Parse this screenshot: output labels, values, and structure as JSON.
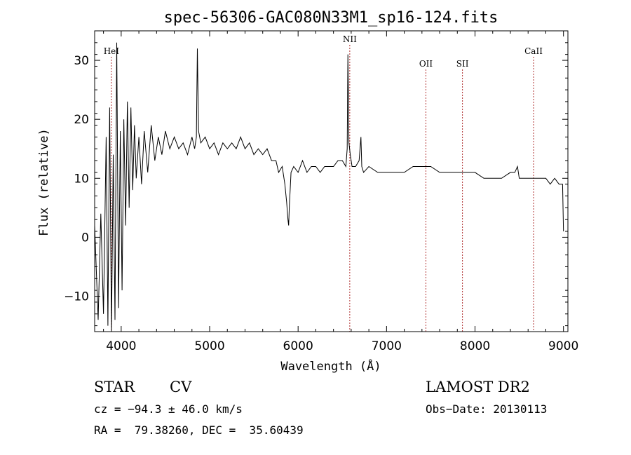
{
  "chart_data": {
    "type": "line",
    "title": "spec-56306-GAC080N33M1_sp16-124.fits",
    "xlabel": "Wavelength (Å)",
    "ylabel": "Flux (relative)",
    "xlim": [
      3700,
      9050
    ],
    "ylim": [
      -16,
      35
    ],
    "x_ticks": [
      4000,
      5000,
      6000,
      7000,
      8000,
      9000
    ],
    "y_ticks": [
      -10,
      0,
      10,
      20,
      30
    ],
    "line_color": "#000000",
    "marker_color": "#b03030",
    "spectral_lines": [
      {
        "name": "HeI",
        "wavelength": 3889
      },
      {
        "name": "NII",
        "wavelength": 6584
      },
      {
        "name": "OII",
        "wavelength": 7445
      },
      {
        "name": "SII",
        "wavelength": 7858
      },
      {
        "name": "CaII",
        "wavelength": 8662
      }
    ],
    "series": [
      {
        "points": [
          [
            3700,
            2
          ],
          [
            3740,
            -14
          ],
          [
            3770,
            4
          ],
          [
            3800,
            -13
          ],
          [
            3830,
            17
          ],
          [
            3850,
            -15
          ],
          [
            3870,
            22
          ],
          [
            3890,
            -16
          ],
          [
            3910,
            14
          ],
          [
            3930,
            -14
          ],
          [
            3950,
            33
          ],
          [
            3970,
            -12
          ],
          [
            3990,
            18
          ],
          [
            4010,
            -9
          ],
          [
            4030,
            20
          ],
          [
            4050,
            2
          ],
          [
            4070,
            23
          ],
          [
            4090,
            5
          ],
          [
            4110,
            22
          ],
          [
            4130,
            8
          ],
          [
            4150,
            19
          ],
          [
            4170,
            10
          ],
          [
            4200,
            17
          ],
          [
            4230,
            9
          ],
          [
            4260,
            18
          ],
          [
            4300,
            11
          ],
          [
            4340,
            19
          ],
          [
            4380,
            13
          ],
          [
            4420,
            17
          ],
          [
            4460,
            14
          ],
          [
            4500,
            18
          ],
          [
            4550,
            15
          ],
          [
            4600,
            17
          ],
          [
            4650,
            15
          ],
          [
            4700,
            16
          ],
          [
            4750,
            14
          ],
          [
            4800,
            17
          ],
          [
            4830,
            15
          ],
          [
            4850,
            17
          ],
          [
            4861,
            32
          ],
          [
            4875,
            18
          ],
          [
            4900,
            16
          ],
          [
            4950,
            17
          ],
          [
            5000,
            15
          ],
          [
            5050,
            16
          ],
          [
            5100,
            14
          ],
          [
            5150,
            16
          ],
          [
            5200,
            15
          ],
          [
            5250,
            16
          ],
          [
            5300,
            15
          ],
          [
            5350,
            17
          ],
          [
            5400,
            15
          ],
          [
            5450,
            16
          ],
          [
            5500,
            14
          ],
          [
            5550,
            15
          ],
          [
            5600,
            14
          ],
          [
            5650,
            15
          ],
          [
            5700,
            13
          ],
          [
            5750,
            13
          ],
          [
            5780,
            11
          ],
          [
            5820,
            12
          ],
          [
            5850,
            9
          ],
          [
            5870,
            6
          ],
          [
            5885,
            3
          ],
          [
            5893,
            2
          ],
          [
            5900,
            5
          ],
          [
            5920,
            11
          ],
          [
            5950,
            12
          ],
          [
            6000,
            11
          ],
          [
            6050,
            13
          ],
          [
            6100,
            11
          ],
          [
            6150,
            12
          ],
          [
            6200,
            12
          ],
          [
            6250,
            11
          ],
          [
            6300,
            12
          ],
          [
            6350,
            12
          ],
          [
            6400,
            12
          ],
          [
            6450,
            13
          ],
          [
            6500,
            13
          ],
          [
            6540,
            12
          ],
          [
            6555,
            15
          ],
          [
            6563,
            31
          ],
          [
            6575,
            16
          ],
          [
            6590,
            14
          ],
          [
            6610,
            12
          ],
          [
            6650,
            12
          ],
          [
            6690,
            13
          ],
          [
            6710,
            17
          ],
          [
            6720,
            12
          ],
          [
            6740,
            11
          ],
          [
            6800,
            12
          ],
          [
            6900,
            11
          ],
          [
            7000,
            11
          ],
          [
            7100,
            11
          ],
          [
            7200,
            11
          ],
          [
            7300,
            12
          ],
          [
            7400,
            12
          ],
          [
            7500,
            12
          ],
          [
            7600,
            11
          ],
          [
            7700,
            11
          ],
          [
            7800,
            11
          ],
          [
            7900,
            11
          ],
          [
            8000,
            11
          ],
          [
            8100,
            10
          ],
          [
            8200,
            10
          ],
          [
            8300,
            10
          ],
          [
            8400,
            11
          ],
          [
            8450,
            11
          ],
          [
            8480,
            12
          ],
          [
            8500,
            10
          ],
          [
            8550,
            10
          ],
          [
            8600,
            10
          ],
          [
            8650,
            10
          ],
          [
            8700,
            10
          ],
          [
            8750,
            10
          ],
          [
            8800,
            10
          ],
          [
            8850,
            9
          ],
          [
            8900,
            10
          ],
          [
            8950,
            9
          ],
          [
            8990,
            9
          ],
          [
            9000,
            1
          ]
        ]
      }
    ]
  },
  "info": {
    "object_class": "STAR",
    "subclass": "CV",
    "survey": "LAMOST DR2",
    "cz": "cz = −94.3 ± 46.0 km/s",
    "obs_date": "Obs−Date: 20130113",
    "coords": "RA =  79.38260, DEC =  35.60439"
  }
}
